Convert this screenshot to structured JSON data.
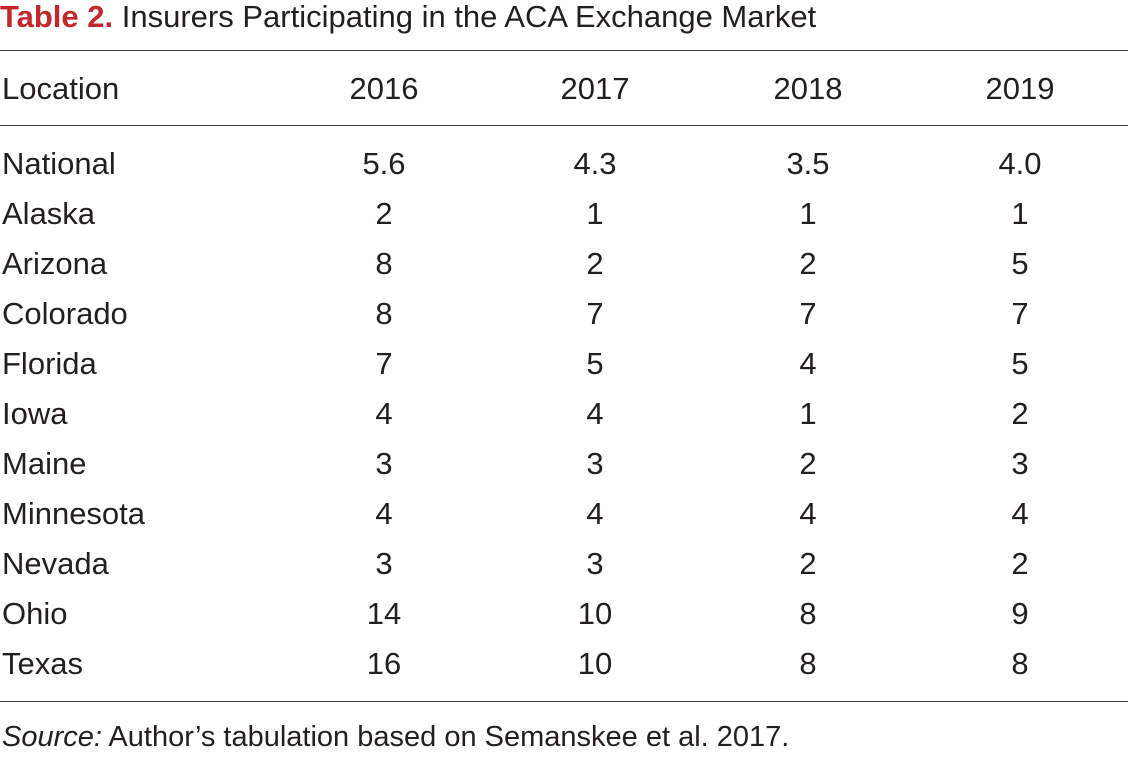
{
  "title": {
    "label": "Table 2.",
    "text": "Insurers Participating in the ACA Exchange Market"
  },
  "table": {
    "headers": [
      "Location",
      "2016",
      "2017",
      "2018",
      "2019"
    ],
    "rows": [
      [
        "National",
        "5.6",
        "4.3",
        "3.5",
        "4.0"
      ],
      [
        "Alaska",
        "2",
        "1",
        "1",
        "1"
      ],
      [
        "Arizona",
        "8",
        "2",
        "2",
        "5"
      ],
      [
        "Colorado",
        "8",
        "7",
        "7",
        "7"
      ],
      [
        "Florida",
        "7",
        "5",
        "4",
        "5"
      ],
      [
        "Iowa",
        "4",
        "4",
        "1",
        "2"
      ],
      [
        "Maine",
        "3",
        "3",
        "2",
        "3"
      ],
      [
        "Minnesota",
        "4",
        "4",
        "4",
        "4"
      ],
      [
        "Nevada",
        "3",
        "3",
        "2",
        "2"
      ],
      [
        "Ohio",
        "14",
        "10",
        "8",
        "9"
      ],
      [
        "Texas",
        "16",
        "10",
        "8",
        "8"
      ]
    ]
  },
  "source": {
    "label": "Source:",
    "text": "Author’s tabulation based on Semanskee et al. 2017."
  }
}
